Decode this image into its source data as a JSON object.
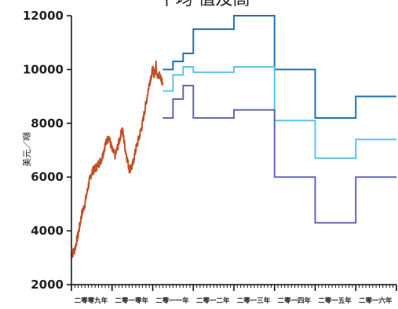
{
  "chart_data": {
    "type": "line",
    "title": "平均 值及高",
    "ylabel": "美元／噸",
    "ylim": [
      2000,
      12000
    ],
    "yticks": [
      2000,
      4000,
      6000,
      8000,
      10000,
      12000
    ],
    "xticks": [
      "二零零九年",
      "二零一零年",
      "二零一一年",
      "二零一二年",
      "二零一三年",
      "二零一四年",
      "二零一五年",
      "二零一六年"
    ],
    "x_range": [
      2009.0,
      2017.0
    ],
    "grid": false,
    "colors": {
      "historical": "#c0522a",
      "high": "#1f72ad",
      "average": "#5bc4e6",
      "low": "#6068ac",
      "axis": "#111111"
    },
    "series": [
      {
        "key": "historical",
        "style": "noisy",
        "x": [
          2009.0,
          2009.08,
          2009.17,
          2009.25,
          2009.33,
          2009.42,
          2009.5,
          2009.58,
          2009.67,
          2009.75,
          2009.83,
          2009.92,
          2010.0,
          2010.08,
          2010.17,
          2010.25,
          2010.33,
          2010.42,
          2010.5,
          2010.58,
          2010.67,
          2010.75,
          2010.83,
          2010.92,
          2011.0,
          2011.04,
          2011.08,
          2011.12,
          2011.17,
          2011.25
        ],
        "y": [
          3100,
          3300,
          3900,
          4600,
          5000,
          5700,
          6200,
          6300,
          6500,
          6700,
          7200,
          7500,
          7000,
          6800,
          7300,
          7800,
          7000,
          6300,
          6400,
          7000,
          7500,
          8000,
          8700,
          9500,
          10000,
          9800,
          10200,
          9700,
          9800,
          9500
        ]
      },
      {
        "key": "high",
        "style": "step",
        "x": [
          2011.25,
          2011.5,
          2011.75,
          2012.0,
          2013.0,
          2014.0,
          2015.0,
          2016.0,
          2017.0
        ],
        "y": [
          10000,
          10300,
          10600,
          11500,
          12000,
          10000,
          8200,
          9000,
          9000
        ]
      },
      {
        "key": "average",
        "style": "step",
        "x": [
          2011.25,
          2011.5,
          2011.75,
          2012.0,
          2013.0,
          2014.0,
          2015.0,
          2016.0,
          2017.0
        ],
        "y": [
          9200,
          9800,
          10100,
          9900,
          10100,
          8100,
          6700,
          7400,
          7400
        ]
      },
      {
        "key": "low",
        "style": "step",
        "x": [
          2011.25,
          2011.5,
          2011.75,
          2012.0,
          2013.0,
          2014.0,
          2015.0,
          2016.0,
          2017.0
        ],
        "y": [
          8200,
          8900,
          9400,
          8200,
          8500,
          6000,
          4300,
          6000,
          6000
        ]
      }
    ]
  }
}
